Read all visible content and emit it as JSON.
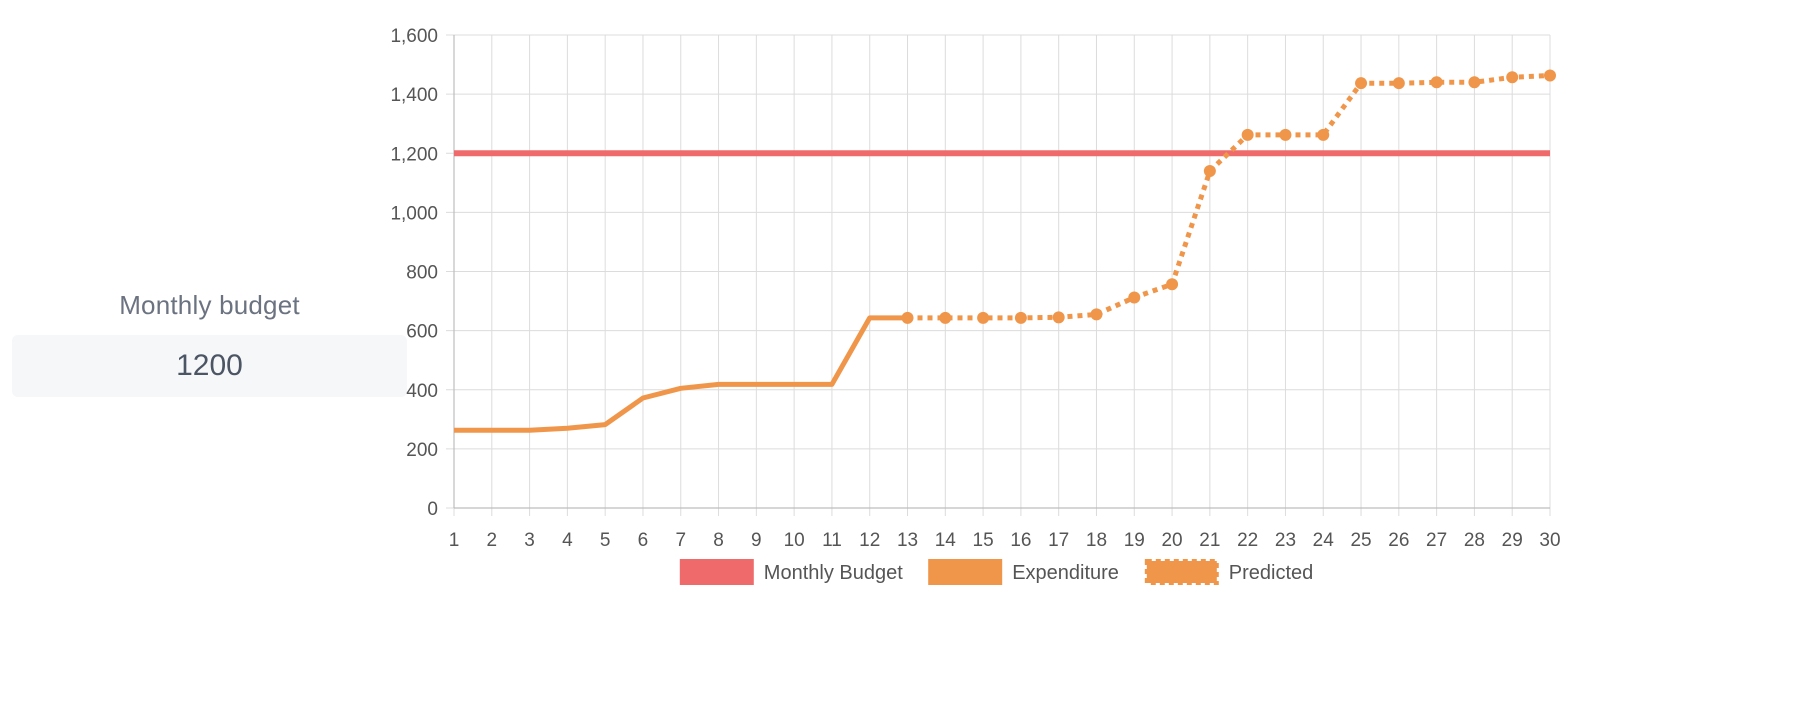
{
  "budget_panel": {
    "label": "Monthly budget",
    "value": "1200"
  },
  "colors": {
    "budget": "#ef6b6b",
    "expenditure": "#f0964a",
    "grid": "#dcdcdc",
    "axis_text": "#555555"
  },
  "chart_data": {
    "type": "line",
    "title": "",
    "xlabel": "",
    "ylabel": "",
    "x": [
      1,
      2,
      3,
      4,
      5,
      6,
      7,
      8,
      9,
      10,
      11,
      12,
      13,
      14,
      15,
      16,
      17,
      18,
      19,
      20,
      21,
      22,
      23,
      24,
      25,
      26,
      27,
      28,
      29,
      30
    ],
    "ylim": [
      0,
      1600
    ],
    "yticks": [
      0,
      200,
      400,
      600,
      800,
      1000,
      1200,
      1400,
      1600
    ],
    "ytick_labels": [
      "0",
      "200",
      "400",
      "600",
      "800",
      "1,000",
      "1,200",
      "1,400",
      "1,600"
    ],
    "grid": true,
    "legend_position": "bottom",
    "series": [
      {
        "name": "Monthly Budget",
        "style": "solid",
        "x": [
          1,
          30
        ],
        "values": [
          1200,
          1200
        ]
      },
      {
        "name": "Expenditure",
        "style": "solid",
        "x": [
          1,
          2,
          3,
          4,
          5,
          6,
          7,
          8,
          9,
          10,
          11,
          12,
          13
        ],
        "values": [
          263,
          263,
          263,
          270,
          282,
          372,
          405,
          418,
          418,
          418,
          418,
          643,
          643
        ]
      },
      {
        "name": "Predicted",
        "style": "dotted",
        "markers": true,
        "x": [
          13,
          14,
          15,
          16,
          17,
          18,
          19,
          20,
          21,
          22,
          23,
          24,
          25,
          26,
          27,
          28,
          29,
          30
        ],
        "values": [
          643,
          643,
          643,
          643,
          645,
          655,
          712,
          757,
          1140,
          1262,
          1262,
          1262,
          1437,
          1437,
          1440,
          1440,
          1457,
          1463
        ]
      }
    ]
  }
}
